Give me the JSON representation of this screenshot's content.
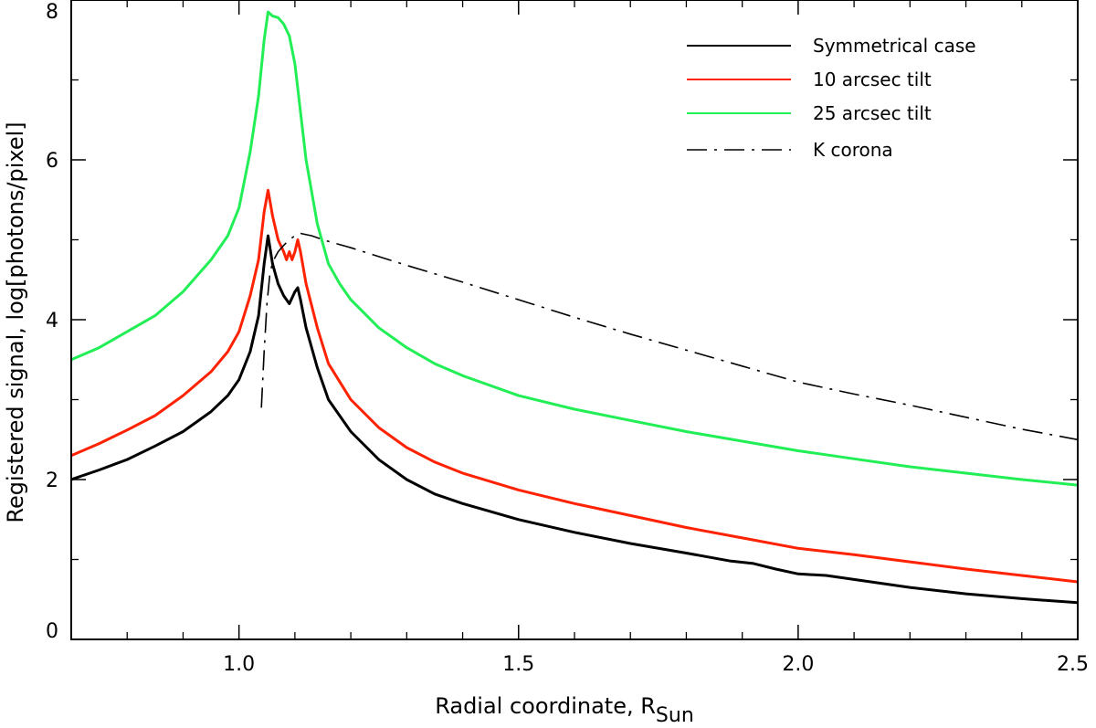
{
  "chart_data": {
    "type": "line",
    "title": "",
    "xlabel": "Radial coordinate, R",
    "xlabel_subscript": "Sun",
    "ylabel": "Registered signal, log[photons/pixel]",
    "xlim": [
      0.7,
      2.5
    ],
    "ylim": [
      0,
      8
    ],
    "xticks": [
      1.0,
      1.5,
      2.0,
      2.5
    ],
    "xtick_labels": [
      "1.0",
      "1.5",
      "2.0",
      "2.5"
    ],
    "xminor_step": 0.1,
    "yticks": [
      0,
      2,
      4,
      6,
      8
    ],
    "ytick_labels": [
      "0",
      "2",
      "4",
      "6",
      "8"
    ],
    "yminor_step": 1,
    "legend_position": "top-right",
    "series": [
      {
        "name": "Symmetrical case",
        "color": "#000000",
        "style": "solid",
        "x": [
          0.7,
          0.75,
          0.8,
          0.85,
          0.9,
          0.95,
          0.98,
          1.0,
          1.02,
          1.035,
          1.045,
          1.052,
          1.06,
          1.07,
          1.08,
          1.09,
          1.1,
          1.105,
          1.11,
          1.12,
          1.14,
          1.16,
          1.2,
          1.25,
          1.3,
          1.35,
          1.4,
          1.5,
          1.6,
          1.7,
          1.8,
          1.88,
          1.92,
          1.96,
          2.0,
          2.05,
          2.1,
          2.2,
          2.3,
          2.4,
          2.5
        ],
        "y": [
          2.0,
          2.12,
          2.25,
          2.42,
          2.6,
          2.85,
          3.05,
          3.25,
          3.6,
          4.05,
          4.7,
          5.05,
          4.7,
          4.45,
          4.3,
          4.2,
          4.35,
          4.4,
          4.25,
          3.9,
          3.4,
          3.0,
          2.6,
          2.25,
          2.0,
          1.82,
          1.7,
          1.5,
          1.34,
          1.2,
          1.08,
          0.98,
          0.95,
          0.88,
          0.82,
          0.8,
          0.75,
          0.65,
          0.57,
          0.51,
          0.46
        ]
      },
      {
        "name": "10 arcsec tilt",
        "color": "#ff2200",
        "style": "solid",
        "x": [
          0.7,
          0.75,
          0.8,
          0.85,
          0.9,
          0.95,
          0.98,
          1.0,
          1.02,
          1.035,
          1.045,
          1.052,
          1.06,
          1.07,
          1.08,
          1.085,
          1.09,
          1.095,
          1.1,
          1.105,
          1.11,
          1.12,
          1.14,
          1.16,
          1.2,
          1.25,
          1.3,
          1.35,
          1.4,
          1.5,
          1.6,
          1.7,
          1.8,
          1.9,
          2.0,
          2.1,
          2.2,
          2.3,
          2.4,
          2.5
        ],
        "y": [
          2.3,
          2.45,
          2.62,
          2.8,
          3.05,
          3.35,
          3.6,
          3.85,
          4.3,
          4.75,
          5.35,
          5.62,
          5.3,
          5.0,
          4.85,
          4.75,
          4.85,
          4.75,
          4.85,
          5.0,
          4.85,
          4.45,
          3.9,
          3.45,
          3.0,
          2.65,
          2.4,
          2.22,
          2.08,
          1.87,
          1.7,
          1.55,
          1.4,
          1.27,
          1.14,
          1.06,
          0.97,
          0.88,
          0.8,
          0.72
        ]
      },
      {
        "name": "25 arcsec tilt",
        "color": "#22ee55",
        "style": "solid",
        "x": [
          0.7,
          0.75,
          0.8,
          0.85,
          0.9,
          0.95,
          0.98,
          1.0,
          1.02,
          1.035,
          1.045,
          1.052,
          1.06,
          1.07,
          1.08,
          1.09,
          1.1,
          1.11,
          1.12,
          1.14,
          1.16,
          1.18,
          1.2,
          1.25,
          1.3,
          1.35,
          1.4,
          1.5,
          1.6,
          1.7,
          1.8,
          1.9,
          2.0,
          2.1,
          2.2,
          2.3,
          2.4,
          2.5
        ],
        "y": [
          3.5,
          3.65,
          3.85,
          4.05,
          4.35,
          4.75,
          5.05,
          5.4,
          6.1,
          6.8,
          7.5,
          7.85,
          7.8,
          7.78,
          7.7,
          7.55,
          7.2,
          6.6,
          6.0,
          5.2,
          4.7,
          4.45,
          4.25,
          3.9,
          3.65,
          3.45,
          3.3,
          3.05,
          2.88,
          2.74,
          2.6,
          2.48,
          2.36,
          2.26,
          2.16,
          2.08,
          2.0,
          1.93
        ]
      },
      {
        "name": "K corona",
        "color": "#000000",
        "style": "dashdot",
        "x": [
          1.04,
          1.045,
          1.05,
          1.055,
          1.06,
          1.07,
          1.08,
          1.09,
          1.1,
          1.11,
          1.13,
          1.15,
          1.2,
          1.3,
          1.4,
          1.5,
          1.6,
          1.7,
          1.8,
          1.9,
          2.0,
          2.1,
          2.2,
          2.3,
          2.4,
          2.5
        ],
        "y": [
          2.9,
          3.6,
          4.2,
          4.55,
          4.72,
          4.85,
          4.93,
          5.0,
          5.05,
          5.08,
          5.05,
          5.0,
          4.9,
          4.68,
          4.47,
          4.25,
          4.03,
          3.82,
          3.62,
          3.42,
          3.22,
          3.07,
          2.93,
          2.78,
          2.63,
          2.5
        ]
      }
    ]
  }
}
